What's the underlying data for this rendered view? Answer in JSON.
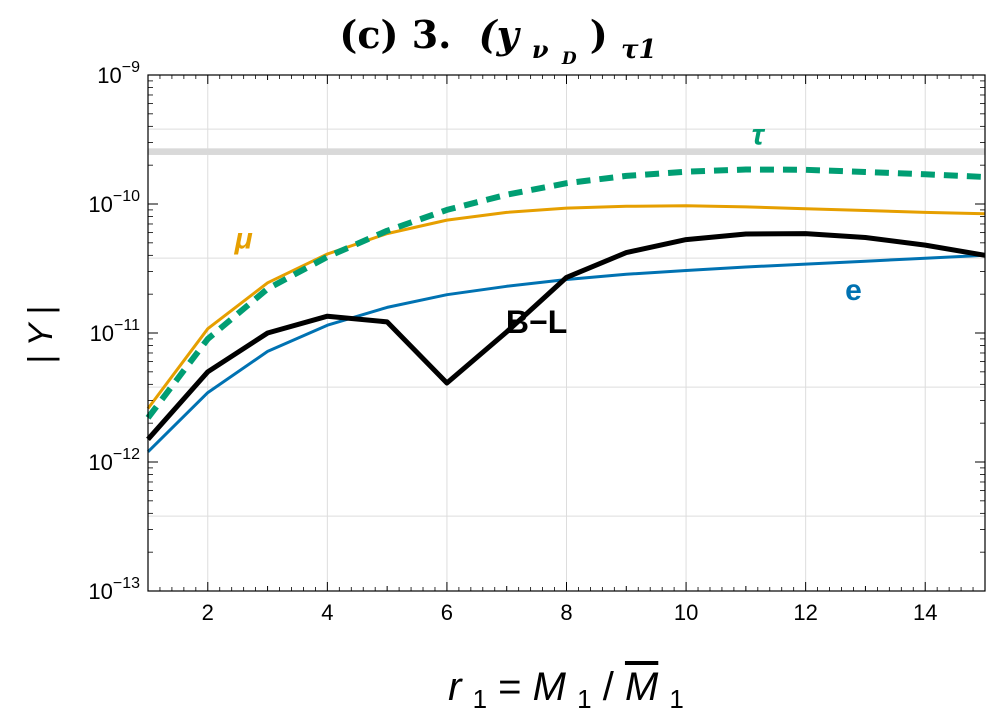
{
  "chart_data": {
    "type": "line",
    "title": {
      "prefix": "(c) 3.",
      "main": "(y",
      "sub1": "ν",
      "sub2": "D",
      "close": ")",
      "sub3": "τ1"
    },
    "xlabel": {
      "r": "r",
      "r_sub": "1",
      "eq": "=",
      "m": "M",
      "m_sub": "1",
      "slash": "/",
      "mbar": "M",
      "mbar_sub": "1"
    },
    "ylabel": "| Y |",
    "xlim": [
      1,
      15
    ],
    "ylim": [
      1e-13,
      1e-09
    ],
    "y_scale": "log",
    "grid": true,
    "x_ticks": [
      2,
      4,
      6,
      8,
      10,
      12,
      14
    ],
    "x_tick_labels": [
      "2",
      "4",
      "6",
      "8",
      "10",
      "12",
      "14"
    ],
    "y_ticks": [
      {
        "value": 1e-13,
        "mantissa": "10",
        "exp": "−13"
      },
      {
        "value": 1e-12,
        "mantissa": "10",
        "exp": "−12"
      },
      {
        "value": 1e-11,
        "mantissa": "10",
        "exp": "−11"
      },
      {
        "value": 1e-10,
        "mantissa": "10",
        "exp": "−10"
      },
      {
        "value": 1e-09,
        "mantissa": "10",
        "exp": "−9"
      }
    ],
    "band": {
      "ylow": 2.4e-10,
      "yhigh": 2.7e-10,
      "color": "#d9d9d9"
    },
    "series": [
      {
        "name": "μ",
        "color": "#e69f00",
        "style": "solid",
        "width": 3,
        "x": [
          1,
          2,
          3,
          4,
          5,
          6,
          7,
          8,
          9,
          10,
          11,
          12,
          13,
          14,
          15
        ],
        "y": [
          2.6e-12,
          1.08e-11,
          2.45e-11,
          4.1e-11,
          5.9e-11,
          7.5e-11,
          8.6e-11,
          9.3e-11,
          9.6e-11,
          9.7e-11,
          9.5e-11,
          9.2e-11,
          8.9e-11,
          8.6e-11,
          8.4e-11
        ],
        "label_pos": [
          2.6,
          4.5e-11
        ]
      },
      {
        "name": "τ",
        "color": "#009e73",
        "style": "dashed",
        "width": 6,
        "x": [
          1,
          2,
          3,
          4,
          5,
          6,
          7,
          8,
          9,
          10,
          11,
          12,
          13,
          14,
          15
        ],
        "y": [
          2.2e-12,
          9e-12,
          2.2e-11,
          3.9e-11,
          6.2e-11,
          9e-11,
          1.18e-10,
          1.45e-10,
          1.65e-10,
          1.78e-10,
          1.85e-10,
          1.84e-10,
          1.77e-10,
          1.7e-10,
          1.62e-10
        ],
        "label_pos": [
          11.2,
          2.9e-10
        ]
      },
      {
        "name": "e",
        "color": "#0072b2",
        "style": "solid",
        "width": 3,
        "x": [
          1,
          2,
          3,
          4,
          5,
          6,
          7,
          8,
          9,
          10,
          11,
          12,
          13,
          14,
          15
        ],
        "y": [
          1.2e-12,
          3.45e-12,
          7.2e-12,
          1.15e-11,
          1.58e-11,
          1.98e-11,
          2.3e-11,
          2.6e-11,
          2.85e-11,
          3.05e-11,
          3.25e-11,
          3.42e-11,
          3.6e-11,
          3.8e-11,
          4e-11
        ],
        "label_pos": [
          12.8,
          1.8e-11
        ]
      },
      {
        "name": "B−L",
        "color": "#000000",
        "style": "solid",
        "width": 5,
        "x": [
          1,
          2,
          3,
          4,
          5,
          6,
          7,
          8,
          9,
          10,
          11,
          12,
          13,
          14,
          15
        ],
        "y": [
          1.5e-12,
          5e-12,
          1e-11,
          1.35e-11,
          1.22e-11,
          4.1e-12,
          1.02e-11,
          2.7e-11,
          4.2e-11,
          5.3e-11,
          5.85e-11,
          5.9e-11,
          5.5e-11,
          4.8e-11,
          4e-11
        ],
        "label_pos": [
          7.5,
          1e-11
        ]
      }
    ]
  }
}
